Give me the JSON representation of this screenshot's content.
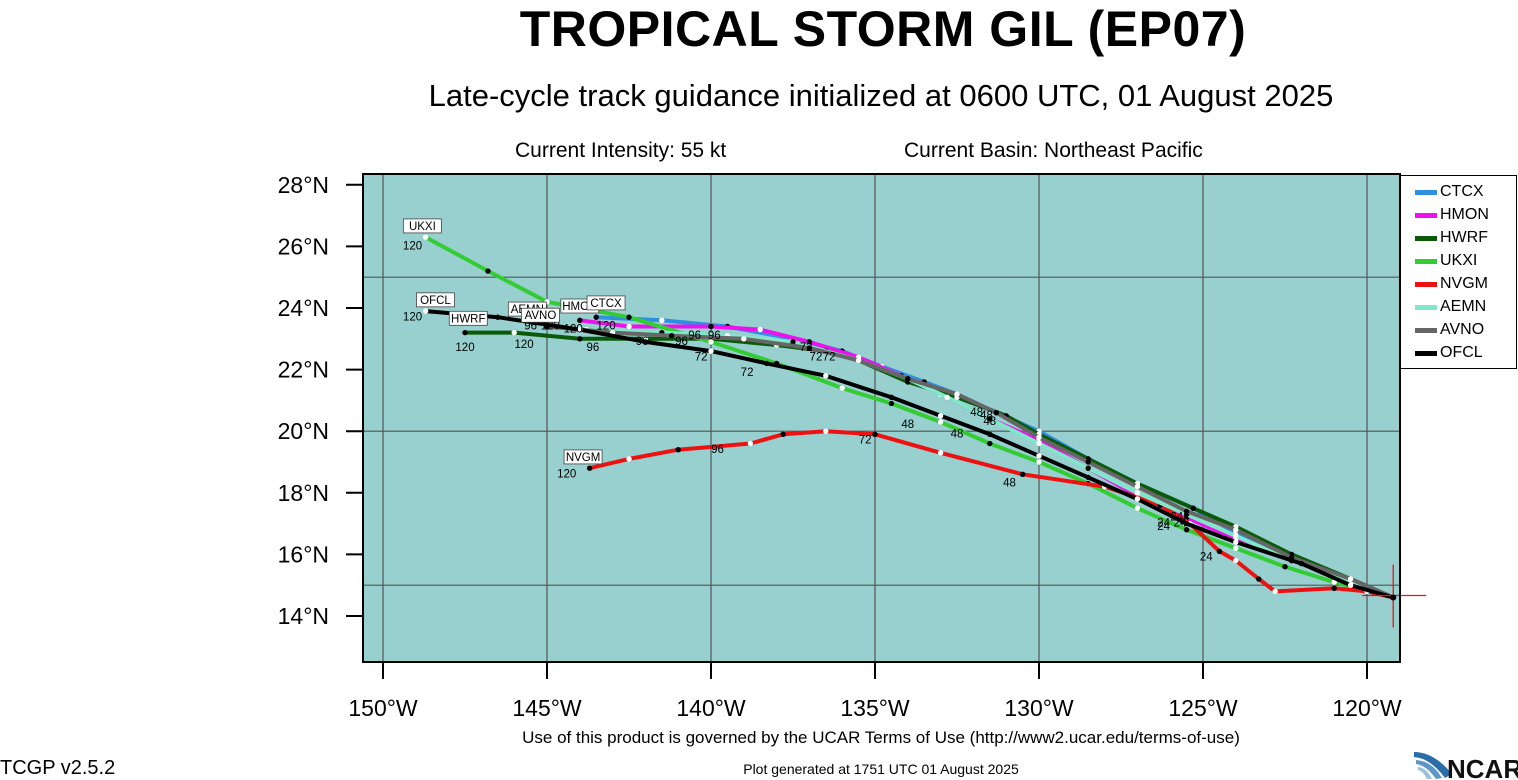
{
  "header": {
    "title": "TROPICAL STORM GIL (EP07)",
    "subtitle": "Late-cycle track guidance initialized at 0600 UTC, 01 August 2025",
    "intensity": "Current Intensity: 55 kt",
    "basin": "Current Basin: Northeast Pacific"
  },
  "footer": {
    "terms": "Use of this product is governed by the UCAR Terms of Use (http://www2.ucar.edu/terms-of-use)",
    "generated": "Plot generated at 1751 UTC   01 August 2025",
    "version": "TCGP v2.5.2",
    "logo": "NCAR"
  },
  "colors": {
    "ocean": "#98cfcf",
    "grid": "#555555"
  },
  "chart_data": {
    "type": "line",
    "xlim": [
      -151.5,
      -117.5
    ],
    "ylim": [
      12.5,
      28.3
    ],
    "xticks": [
      {
        "value": -150,
        "label": "150°W"
      },
      {
        "value": -145,
        "label": "145°W"
      },
      {
        "value": -140,
        "label": "140°W"
      },
      {
        "value": -135,
        "label": "135°W"
      },
      {
        "value": -130,
        "label": "130°W"
      },
      {
        "value": -125,
        "label": "125°W"
      },
      {
        "value": -120,
        "label": "120°W"
      }
    ],
    "yticks": [
      {
        "value": 14,
        "label": "14°N"
      },
      {
        "value": 16,
        "label": "16°N"
      },
      {
        "value": 18,
        "label": "18°N"
      },
      {
        "value": 20,
        "label": "20°N"
      },
      {
        "value": 22,
        "label": "22°N"
      },
      {
        "value": 24,
        "label": "24°N"
      },
      {
        "value": 26,
        "label": "26°N"
      },
      {
        "value": 28,
        "label": "28°N"
      }
    ],
    "grid_lon": [
      -150,
      -145,
      -140,
      -135,
      -130,
      -125,
      -120
    ],
    "grid_lat": [
      15,
      20,
      25
    ],
    "current_position": {
      "lon": -119.2,
      "lat": 14.6
    },
    "legend_position": "right",
    "series": [
      {
        "name": "CTCX",
        "color": "#2f8fe0",
        "points": [
          [
            -119.2,
            14.6
          ],
          [
            -120.5,
            15.2
          ],
          [
            -122.3,
            15.9
          ],
          [
            -124,
            16.7
          ],
          [
            -125.3,
            17.5
          ],
          [
            -127,
            18.3
          ],
          [
            -128.5,
            19.1
          ],
          [
            -130,
            20
          ],
          [
            -131.3,
            20.6
          ],
          [
            -132.5,
            21.2
          ],
          [
            -133.5,
            21.6
          ],
          [
            -134.8,
            22.1
          ],
          [
            -136,
            22.6
          ],
          [
            -137.5,
            23
          ],
          [
            -139.5,
            23.4
          ],
          [
            -141.5,
            23.6
          ],
          [
            -143.5,
            23.7
          ]
        ],
        "labels": []
      },
      {
        "name": "HMON",
        "color": "#ee11ee",
        "points": [
          [
            -119.2,
            14.6
          ],
          [
            -120.5,
            15.1
          ],
          [
            -122.3,
            15.8
          ],
          [
            -124,
            16.5
          ],
          [
            -125.5,
            17.2
          ],
          [
            -127,
            17.9
          ],
          [
            -128.5,
            18.8
          ],
          [
            -130,
            19.7
          ],
          [
            -131.5,
            20.4
          ],
          [
            -133,
            21.2
          ],
          [
            -134.2,
            21.8
          ],
          [
            -135.5,
            22.4
          ],
          [
            -137,
            22.9
          ],
          [
            -138.5,
            23.3
          ],
          [
            -140,
            23.4
          ],
          [
            -142.5,
            23.4
          ],
          [
            -144,
            23.6
          ]
        ],
        "labels": [
          {
            "text": "72",
            "lon": -136.4,
            "lat": 22.3
          },
          {
            "text": "48",
            "lon": -131.9,
            "lat": 20.5
          },
          {
            "text": "24",
            "lon": -125.8,
            "lat": 17.1
          }
        ]
      },
      {
        "name": "HWRF",
        "color": "#0a5a0a",
        "points": [
          [
            -119.2,
            14.6
          ],
          [
            -120.5,
            15.2
          ],
          [
            -122.3,
            16
          ],
          [
            -124,
            16.9
          ],
          [
            -125.3,
            17.5
          ],
          [
            -127,
            18.3
          ],
          [
            -128.5,
            19.1
          ],
          [
            -130,
            19.9
          ],
          [
            -131,
            20.5
          ],
          [
            -132.5,
            21.1
          ],
          [
            -134,
            21.6
          ],
          [
            -135.5,
            22.3
          ],
          [
            -136.5,
            22.6
          ],
          [
            -138,
            22.8
          ],
          [
            -140,
            23
          ],
          [
            -142,
            23
          ],
          [
            -144,
            23
          ],
          [
            -146,
            23.2
          ],
          [
            -147.5,
            23.2
          ]
        ],
        "labels": [
          {
            "text": "72",
            "lon": -136.8,
            "lat": 22.3
          },
          {
            "text": "48",
            "lon": -131.5,
            "lat": 20.2
          },
          {
            "text": "24",
            "lon": -125.7,
            "lat": 16.9
          },
          {
            "text": "120",
            "lon": -147.5,
            "lat": 22.6
          }
        ]
      },
      {
        "name": "UKXI",
        "color": "#33cc33",
        "points": [
          [
            -119.2,
            14.6
          ],
          [
            -121,
            15.1
          ],
          [
            -122.5,
            15.6
          ],
          [
            -124,
            16.2
          ],
          [
            -125.5,
            16.8
          ],
          [
            -127,
            17.5
          ],
          [
            -128.5,
            18.3
          ],
          [
            -130,
            19
          ],
          [
            -131.5,
            19.6
          ],
          [
            -133,
            20.3
          ],
          [
            -134.5,
            20.9
          ],
          [
            -136,
            21.4
          ],
          [
            -138,
            22.2
          ],
          [
            -140,
            22.9
          ],
          [
            -142.5,
            23.7
          ],
          [
            -145,
            24.2
          ],
          [
            -146.8,
            25.2
          ],
          [
            -148.7,
            26.3
          ]
        ],
        "labels": [
          {
            "text": "120",
            "lon": -149.1,
            "lat": 25.9
          }
        ]
      },
      {
        "name": "NVGM",
        "color": "#ee1111",
        "points": [
          [
            -119.2,
            14.6
          ],
          [
            -120,
            14.8
          ],
          [
            -121,
            14.9
          ],
          [
            -122.8,
            14.8
          ],
          [
            -123.3,
            15.2
          ],
          [
            -124,
            15.8
          ],
          [
            -124.5,
            16.1
          ],
          [
            -125.4,
            17
          ],
          [
            -126.3,
            17.6
          ],
          [
            -128,
            18.2
          ],
          [
            -130.5,
            18.6
          ],
          [
            -133,
            19.3
          ],
          [
            -135,
            19.9
          ],
          [
            -136.5,
            20
          ],
          [
            -137.8,
            19.9
          ],
          [
            -138.8,
            19.6
          ],
          [
            -141,
            19.4
          ],
          [
            -142.5,
            19.1
          ],
          [
            -143.7,
            18.8
          ]
        ],
        "labels": [
          {
            "text": "24",
            "lon": -124.9,
            "lat": 15.8
          },
          {
            "text": "48",
            "lon": -130.9,
            "lat": 18.2
          },
          {
            "text": "72",
            "lon": -135.3,
            "lat": 19.6
          },
          {
            "text": "96",
            "lon": -139.8,
            "lat": 19.3
          },
          {
            "text": "120",
            "lon": -144.4,
            "lat": 18.5
          }
        ]
      },
      {
        "name": "AEMN",
        "color": "#7fe8c8",
        "points": [
          [
            -119.2,
            14.6
          ],
          [
            -120.5,
            15.1
          ],
          [
            -122.3,
            15.8
          ],
          [
            -124,
            16.6
          ],
          [
            -125.5,
            17.3
          ],
          [
            -127,
            18
          ],
          [
            -128.5,
            18.8
          ],
          [
            -130,
            19.6
          ],
          [
            -131.5,
            20.4
          ],
          [
            -132.8,
            21.1
          ],
          [
            -134,
            21.7
          ],
          [
            -135.5,
            22.3
          ],
          [
            -137.5,
            22.9
          ],
          [
            -139.5,
            23.1
          ],
          [
            -141.5,
            23.2
          ],
          [
            -143.8,
            23.3
          ]
        ],
        "labels": []
      },
      {
        "name": "AVNO",
        "color": "#666666",
        "points": [
          [
            -119.2,
            14.6
          ],
          [
            -120.5,
            15.2
          ],
          [
            -122.3,
            15.9
          ],
          [
            -124,
            16.8
          ],
          [
            -125.5,
            17.4
          ],
          [
            -127,
            18.2
          ],
          [
            -128.5,
            19
          ],
          [
            -130,
            19.8
          ],
          [
            -131.3,
            20.6
          ],
          [
            -132.5,
            21.2
          ],
          [
            -134,
            21.7
          ],
          [
            -135.5,
            22.3
          ],
          [
            -137,
            22.7
          ],
          [
            -139,
            23
          ],
          [
            -141.2,
            23.1
          ],
          [
            -143,
            23.2
          ],
          [
            -145,
            23.4
          ]
        ],
        "labels": [
          {
            "text": "96",
            "lon": -140.9,
            "lat": 22.8
          }
        ]
      },
      {
        "name": "OFCL",
        "color": "#000000",
        "points": [
          [
            -119.2,
            14.6
          ],
          [
            -120.5,
            15
          ],
          [
            -122,
            15.7
          ],
          [
            -124,
            16.4
          ],
          [
            -125.5,
            17
          ],
          [
            -127,
            17.8
          ],
          [
            -128.5,
            18.5
          ],
          [
            -130,
            19.2
          ],
          [
            -131.5,
            19.9
          ],
          [
            -133,
            20.5
          ],
          [
            -134.5,
            21.1
          ],
          [
            -136.5,
            21.8
          ],
          [
            -138.3,
            22.2
          ],
          [
            -140,
            22.6
          ],
          [
            -142,
            22.9
          ],
          [
            -144,
            23.3
          ],
          [
            -146.5,
            23.7
          ],
          [
            -148.7,
            23.9
          ]
        ],
        "labels": [
          {
            "text": "24",
            "lon": -126.2,
            "lat": 16.8
          },
          {
            "text": "48",
            "lon": -132.5,
            "lat": 19.8
          },
          {
            "text": "72",
            "lon": -138.9,
            "lat": 21.8
          },
          {
            "text": "96",
            "lon": -143.6,
            "lat": 22.6
          },
          {
            "text": "120",
            "lon": -149.1,
            "lat": 23.6
          }
        ]
      }
    ],
    "extra_labels": [
      {
        "text": "48",
        "lon": -134,
        "lat": 20.1
      },
      {
        "text": "48",
        "lon": -131.6,
        "lat": 20.4
      },
      {
        "text": "24",
        "lon": -126.2,
        "lat": 16.9
      },
      {
        "text": "72",
        "lon": -137.1,
        "lat": 22.6
      },
      {
        "text": "72",
        "lon": -140.3,
        "lat": 22.3
      },
      {
        "text": "96",
        "lon": -142.1,
        "lat": 22.8
      },
      {
        "text": "96",
        "lon": -140.5,
        "lat": 23
      },
      {
        "text": "96",
        "lon": -139.9,
        "lat": 23
      },
      {
        "text": "96",
        "lon": -145.5,
        "lat": 23.3
      },
      {
        "text": "120",
        "lon": -145.7,
        "lat": 22.7
      },
      {
        "text": "120",
        "lon": -144.2,
        "lat": 23.2
      },
      {
        "text": "120",
        "lon": -143.2,
        "lat": 23.3
      },
      {
        "text": "120",
        "lon": -144.9,
        "lat": 23.3
      }
    ],
    "boxes": [
      {
        "text": "UKXI",
        "lon": -148.8,
        "lat": 26.6
      },
      {
        "text": "OFCL",
        "lon": -148.4,
        "lat": 24.2
      },
      {
        "text": "HWRF",
        "lon": -147.4,
        "lat": 23.6
      },
      {
        "text": "AEMN",
        "lon": -145.6,
        "lat": 23.9
      },
      {
        "text": "AVNO",
        "lon": -145.2,
        "lat": 23.7
      },
      {
        "text": "HMON",
        "lon": -144,
        "lat": 24
      },
      {
        "text": "CTCX",
        "lon": -143.2,
        "lat": 24.1
      },
      {
        "text": "NVGM",
        "lon": -143.9,
        "lat": 19.1
      }
    ]
  }
}
